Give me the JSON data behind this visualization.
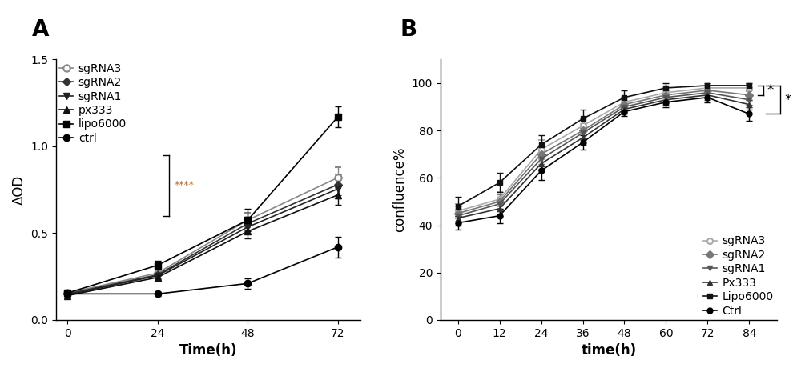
{
  "panel_A": {
    "title": "A",
    "xlabel": "Time(h)",
    "ylabel": "ΔOD",
    "xlim": [
      -3,
      78
    ],
    "ylim": [
      0.0,
      1.5
    ],
    "xticks": [
      0,
      24,
      48,
      72
    ],
    "yticks": [
      0.0,
      0.5,
      1.0,
      1.5
    ],
    "time": [
      0,
      24,
      48,
      72
    ],
    "series": {
      "sgRNA3": {
        "y": [
          0.155,
          0.27,
          0.575,
          0.82
        ],
        "yerr": [
          0.01,
          0.02,
          0.04,
          0.06
        ],
        "color": "#888888",
        "marker": "o",
        "markersize": 6,
        "markerfacecolor": "white",
        "markeredgewidth": 1.5
      },
      "sgRNA2": {
        "y": [
          0.15,
          0.26,
          0.555,
          0.78
        ],
        "yerr": [
          0.01,
          0.02,
          0.04,
          0.06
        ],
        "color": "#333333",
        "marker": "D",
        "markersize": 5,
        "markerfacecolor": "#333333",
        "markeredgewidth": 1.0
      },
      "sgRNA1": {
        "y": [
          0.145,
          0.255,
          0.535,
          0.755
        ],
        "yerr": [
          0.01,
          0.02,
          0.04,
          0.055
        ],
        "color": "#222222",
        "marker": "v",
        "markersize": 6,
        "markerfacecolor": "#222222",
        "markeredgewidth": 1.0
      },
      "px333": {
        "y": [
          0.14,
          0.245,
          0.51,
          0.72
        ],
        "yerr": [
          0.01,
          0.015,
          0.04,
          0.055
        ],
        "color": "#111111",
        "marker": "^",
        "markersize": 6,
        "markerfacecolor": "#111111",
        "markeredgewidth": 1.0
      },
      "lipo6000": {
        "y": [
          0.155,
          0.315,
          0.575,
          1.17
        ],
        "yerr": [
          0.01,
          0.025,
          0.065,
          0.06
        ],
        "color": "#000000",
        "marker": "s",
        "markersize": 6,
        "markerfacecolor": "#000000",
        "markeredgewidth": 1.0
      },
      "ctrl": {
        "y": [
          0.15,
          0.15,
          0.21,
          0.42
        ],
        "yerr": [
          0.01,
          0.01,
          0.03,
          0.06
        ],
        "color": "#000000",
        "marker": "o",
        "markersize": 6,
        "markerfacecolor": "#000000",
        "markeredgewidth": 1.0
      }
    }
  },
  "panel_B": {
    "title": "B",
    "xlabel": "time(h)",
    "ylabel": "confluence%",
    "xlim": [
      -5,
      92
    ],
    "ylim": [
      0,
      110
    ],
    "xticks": [
      0,
      12,
      24,
      36,
      48,
      60,
      72,
      84
    ],
    "yticks": [
      0,
      20,
      40,
      60,
      80,
      100
    ],
    "time": [
      0,
      12,
      24,
      36,
      48,
      60,
      72,
      84
    ],
    "series": {
      "sgRNA3": {
        "y": [
          46,
          51,
          72,
          82,
          92,
          96,
          98,
          98
        ],
        "yerr": [
          3,
          3,
          4,
          3,
          2,
          2,
          1,
          1.5
        ],
        "color": "#aaaaaa",
        "marker": "o",
        "markersize": 5,
        "markerfacecolor": "white",
        "markeredgewidth": 1.5
      },
      "sgRNA2": {
        "y": [
          45,
          50,
          70,
          80,
          91,
          95,
          97,
          95
        ],
        "yerr": [
          3,
          3,
          4,
          3,
          2,
          2,
          2,
          2
        ],
        "color": "#777777",
        "marker": "D",
        "markersize": 5,
        "markerfacecolor": "#777777",
        "markeredgewidth": 1.0
      },
      "sgRNA1": {
        "y": [
          44,
          49,
          68,
          79,
          90,
          94,
          96,
          93
        ],
        "yerr": [
          3,
          3,
          4,
          3,
          2,
          2,
          2,
          2
        ],
        "color": "#555555",
        "marker": "v",
        "markersize": 5,
        "markerfacecolor": "#555555",
        "markeredgewidth": 1.0
      },
      "Px333": {
        "y": [
          43,
          47,
          66,
          77,
          89,
          93,
          95,
          91
        ],
        "yerr": [
          3,
          3,
          3,
          3,
          2,
          2,
          2,
          2
        ],
        "color": "#333333",
        "marker": "^",
        "markersize": 5,
        "markerfacecolor": "#333333",
        "markeredgewidth": 1.0
      },
      "Lipo6000": {
        "y": [
          48,
          58,
          74,
          85,
          94,
          98,
          99,
          99
        ],
        "yerr": [
          4,
          4,
          4,
          4,
          3,
          2,
          1,
          1
        ],
        "color": "#111111",
        "marker": "s",
        "markersize": 5,
        "markerfacecolor": "#111111",
        "markeredgewidth": 1.0
      },
      "Ctrl": {
        "y": [
          41,
          44,
          63,
          75,
          88,
          92,
          94,
          87
        ],
        "yerr": [
          3,
          3,
          4,
          3,
          2,
          2,
          2,
          3
        ],
        "color": "#000000",
        "marker": "o",
        "markersize": 5,
        "markerfacecolor": "#000000",
        "markeredgewidth": 1.0
      }
    }
  },
  "bg_color": "#ffffff",
  "font_size": 11,
  "label_fontsize": 12,
  "panel_label_fontsize": 20
}
